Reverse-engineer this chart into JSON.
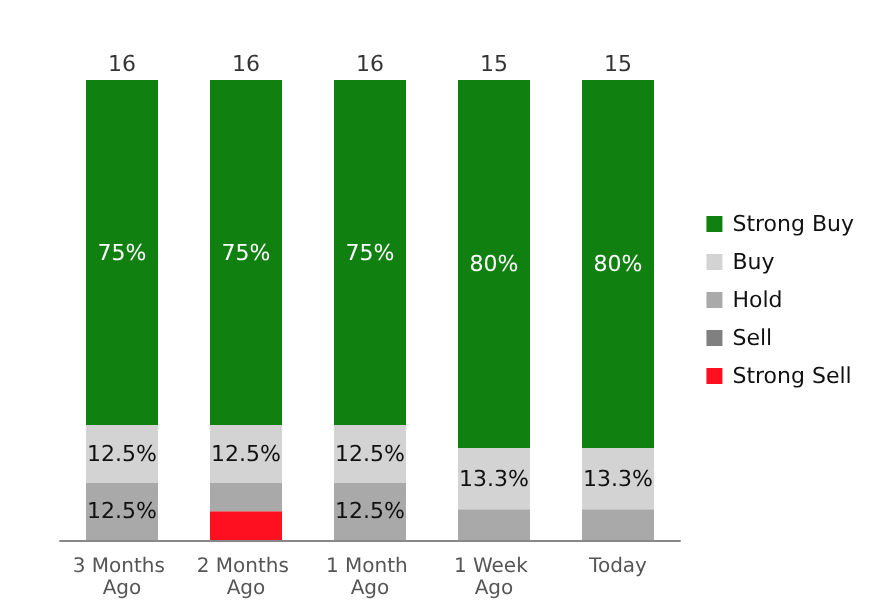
{
  "chart_data": {
    "type": "bar",
    "stacked": true,
    "categories": [
      "3 Months Ago",
      "2 Months Ago",
      "1 Month Ago",
      "1 Week Ago",
      "Today"
    ],
    "ylim": [
      0,
      100
    ],
    "tick_labels": "x",
    "legend": "right",
    "annotations": [
      {
        "text": "16",
        "x": "3 Months Ago",
        "y": 100
      },
      {
        "text": "16",
        "x": "2 Months Ago",
        "y": 100
      },
      {
        "text": "16",
        "x": "1 Month Ago",
        "y": 100
      },
      {
        "text": "15",
        "x": "1 Week Ago",
        "y": 100
      },
      {
        "text": "15",
        "x": "Today",
        "y": 100
      }
    ],
    "series": [
      {
        "name": "Strong Sell",
        "color": "#ff1020",
        "values": [
          0,
          6.25,
          0,
          0,
          0
        ],
        "value_labels": [
          null,
          null,
          null,
          null,
          null
        ]
      },
      {
        "name": "Sell",
        "color": "#808080",
        "values": [
          0,
          0,
          0,
          0,
          0
        ],
        "value_labels": [
          null,
          null,
          null,
          null,
          null
        ]
      },
      {
        "name": "Hold",
        "color": "#a9a9a9",
        "values": [
          12.5,
          6.25,
          12.5,
          6.7,
          6.7
        ],
        "value_labels": [
          "12.5%",
          null,
          "12.5%",
          null,
          null
        ]
      },
      {
        "name": "Buy",
        "color": "#d3d3d3",
        "values": [
          12.5,
          12.5,
          12.5,
          13.3,
          13.3
        ],
        "value_labels": [
          "12.5%",
          "12.5%",
          "12.5%",
          "13.3%",
          "13.3%"
        ]
      },
      {
        "name": "Strong Buy",
        "color": "#108010",
        "values": [
          75,
          75,
          75,
          80,
          80
        ],
        "value_labels": [
          "75%",
          "75%",
          "75%",
          "80%",
          "80%"
        ]
      }
    ]
  }
}
